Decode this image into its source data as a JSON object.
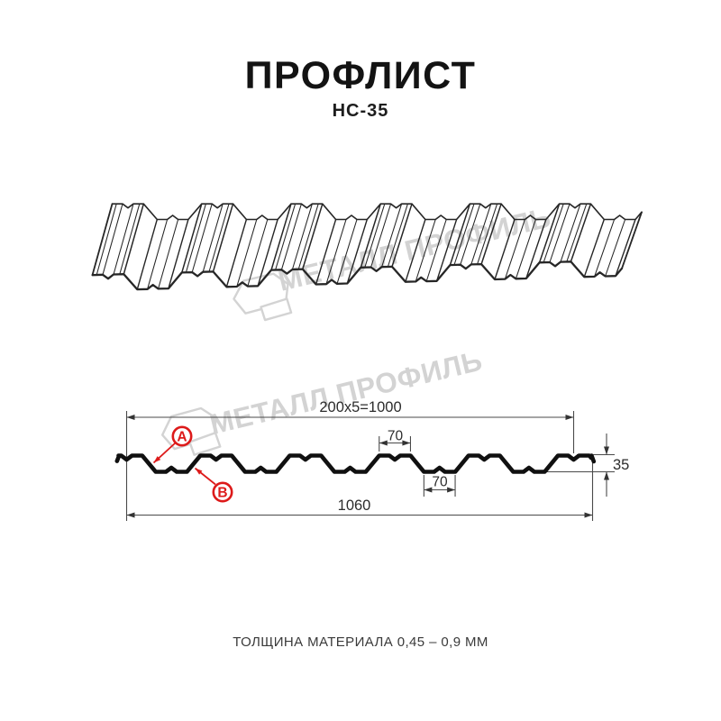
{
  "title": "ПРОФЛИСТ",
  "subtitle": "НС-35",
  "watermark": {
    "brand": "МЕТАЛЛ ПРОФИЛЬ",
    "color": "#d3d3d3"
  },
  "diagram": {
    "dimensions": {
      "pitch": "200x5=1000",
      "rib_top_width": "70",
      "rib_bottom_width": "70",
      "profile_height": "35",
      "overall_width": "1060"
    },
    "markers": {
      "a": "А",
      "b": "В"
    },
    "accent_color": "#dd1a1a",
    "line_color": "#4a4a4a",
    "profile_color": "#101010",
    "sheet_line_color": "#262626"
  },
  "caption": "ТОЛЩИНА МАТЕРИАЛА 0,45 – 0,9 ММ"
}
